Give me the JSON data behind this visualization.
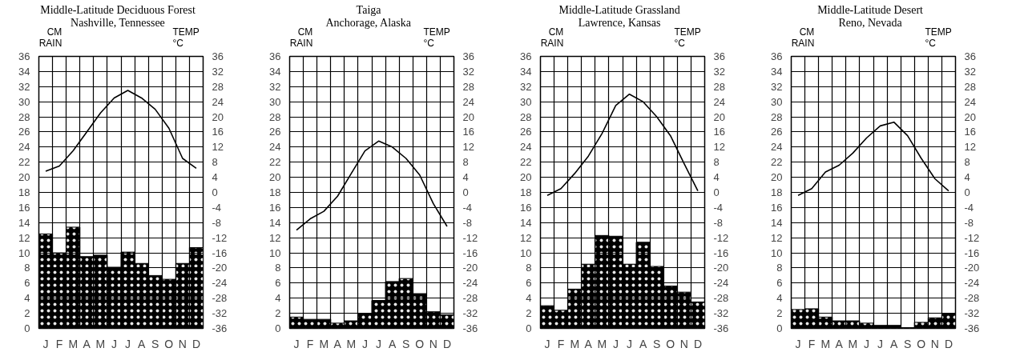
{
  "chart_data": [
    {
      "type": "bar",
      "title": "Middle-Latitude Deciduous Forest",
      "subtitle": "Nashville, Tennessee",
      "ylabel": "CM RAIN",
      "y2label": "TEMP °C",
      "categories": [
        "J",
        "F",
        "M",
        "A",
        "M",
        "J",
        "J",
        "A",
        "S",
        "O",
        "N",
        "D"
      ],
      "ylim": [
        0,
        36
      ],
      "yticks": [
        0,
        2,
        4,
        6,
        8,
        10,
        12,
        14,
        16,
        18,
        20,
        22,
        24,
        26,
        28,
        30,
        32,
        34,
        36
      ],
      "y2lim": [
        -36,
        36
      ],
      "y2ticks": [
        -36,
        -32,
        -28,
        -24,
        -20,
        -16,
        -12,
        -8,
        -4,
        0,
        4,
        8,
        12,
        16,
        20,
        24,
        28,
        32,
        36
      ],
      "grid": true,
      "series": [
        {
          "color": "#000000",
          "values": [
            12.5,
            10,
            13.4,
            9.5,
            9.7,
            8.1,
            10.1,
            8.6,
            7.0,
            6.5,
            8.6,
            10.7
          ]
        },
        {
          "type": "line",
          "axis": "y2",
          "color": "#000000",
          "values": [
            5.6,
            7,
            11,
            16,
            21,
            25,
            27,
            25,
            22,
            17,
            9,
            6.4
          ]
        }
      ]
    },
    {
      "type": "bar",
      "title": "Taiga",
      "subtitle": "Anchorage, Alaska",
      "ylabel": "CM RAIN",
      "y2label": "TEMP °C",
      "categories": [
        "J",
        "F",
        "M",
        "A",
        "M",
        "J",
        "J",
        "A",
        "S",
        "O",
        "N",
        "D"
      ],
      "ylim": [
        0,
        36
      ],
      "yticks": [
        0,
        2,
        4,
        6,
        8,
        10,
        12,
        14,
        16,
        18,
        20,
        22,
        24,
        26,
        28,
        30,
        32,
        34,
        36
      ],
      "y2lim": [
        -36,
        36
      ],
      "y2ticks": [
        -36,
        -32,
        -28,
        -24,
        -20,
        -16,
        -12,
        -8,
        -4,
        0,
        4,
        8,
        12,
        16,
        20,
        24,
        28,
        32,
        36
      ],
      "grid": true,
      "series": [
        {
          "color": "#000000",
          "values": [
            1.5,
            1.2,
            1.2,
            0.7,
            1.0,
            2.0,
            3.7,
            6.2,
            6.6,
            4.6,
            2.2,
            1.8
          ]
        },
        {
          "type": "line",
          "axis": "y2",
          "color": "#000000",
          "values": [
            -10,
            -7,
            -5,
            -1,
            5,
            11,
            13.6,
            12,
            9,
            4.6,
            -3,
            -9
          ]
        }
      ]
    },
    {
      "type": "bar",
      "title": "Middle-Latitude Grassland",
      "subtitle": "Lawrence, Kansas",
      "ylabel": "CM RAIN",
      "y2label": "TEMP °C",
      "categories": [
        "J",
        "F",
        "M",
        "A",
        "M",
        "J",
        "J",
        "A",
        "S",
        "O",
        "N",
        "D"
      ],
      "ylim": [
        0,
        36
      ],
      "yticks": [
        0,
        2,
        4,
        6,
        8,
        10,
        12,
        14,
        16,
        18,
        20,
        22,
        24,
        26,
        28,
        30,
        32,
        34,
        36
      ],
      "y2lim": [
        -36,
        36
      ],
      "y2ticks": [
        -36,
        -32,
        -28,
        -24,
        -20,
        -16,
        -12,
        -8,
        -4,
        0,
        4,
        8,
        12,
        16,
        20,
        24,
        28,
        32,
        36
      ],
      "grid": true,
      "series": [
        {
          "color": "#000000",
          "values": [
            3.0,
            2.4,
            5.2,
            8.5,
            12.3,
            12.2,
            8.5,
            11.4,
            8.2,
            5.6,
            4.8,
            3.5
          ]
        },
        {
          "type": "line",
          "axis": "y2",
          "color": "#000000",
          "values": [
            -0.8,
            1,
            5,
            9.6,
            15.6,
            23,
            26,
            24,
            20,
            15,
            7.6,
            0.4
          ]
        }
      ]
    },
    {
      "type": "bar",
      "title": "Middle-Latitude Desert",
      "subtitle": "Reno, Nevada",
      "ylabel": "CM RAIN",
      "y2label": "TEMP °C",
      "categories": [
        "J",
        "F",
        "M",
        "A",
        "M",
        "J",
        "J",
        "A",
        "S",
        "O",
        "N",
        "D"
      ],
      "ylim": [
        0,
        36
      ],
      "yticks": [
        0,
        2,
        4,
        6,
        8,
        10,
        12,
        14,
        16,
        18,
        20,
        22,
        24,
        26,
        28,
        30,
        32,
        34,
        36
      ],
      "y2lim": [
        -36,
        36
      ],
      "y2ticks": [
        -36,
        -32,
        -28,
        -24,
        -20,
        -16,
        -12,
        -8,
        -4,
        0,
        4,
        8,
        12,
        16,
        20,
        24,
        28,
        32,
        36
      ],
      "grid": true,
      "series": [
        {
          "color": "#000000",
          "values": [
            2.5,
            2.6,
            1.5,
            1.0,
            1.0,
            0.7,
            0.4,
            0.4,
            0.1,
            0.8,
            1.4,
            1.9
          ]
        },
        {
          "type": "line",
          "axis": "y2",
          "color": "#000000",
          "values": [
            -0.8,
            1,
            5.4,
            7.2,
            10.4,
            14.4,
            17.6,
            18.6,
            15,
            9,
            3.6,
            0.4
          ]
        }
      ]
    }
  ]
}
